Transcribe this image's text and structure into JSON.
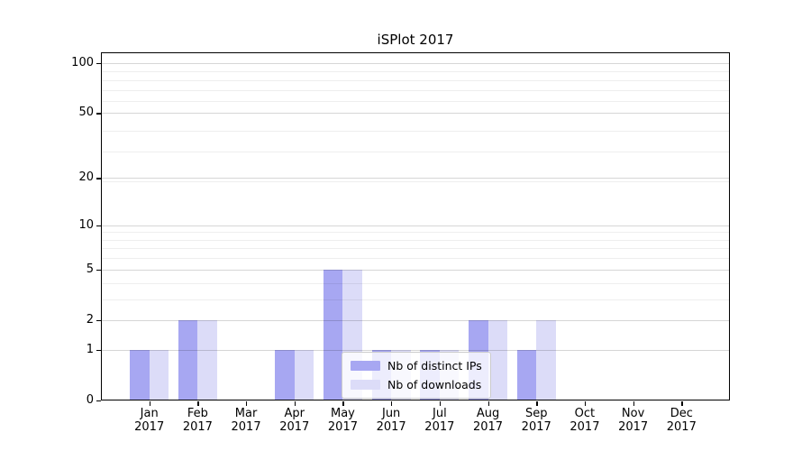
{
  "chart_data": {
    "type": "bar",
    "title": "iSPlot 2017",
    "categories": [
      "Jan",
      "Feb",
      "Mar",
      "Apr",
      "May",
      "Jun",
      "Jul",
      "Aug",
      "Sep",
      "Oct",
      "Nov",
      "Dec"
    ],
    "year_label": "2017",
    "series": [
      {
        "name": "Nb of distinct IPs",
        "color": "#a7a7f2",
        "values": [
          1,
          2,
          0,
          1,
          5,
          1,
          1,
          2,
          1,
          0,
          0,
          0
        ]
      },
      {
        "name": "Nb of downloads",
        "color": "#dcdcf8",
        "values": [
          1,
          2,
          0,
          1,
          5,
          1,
          1,
          2,
          2,
          0,
          0,
          0
        ]
      }
    ],
    "y_axis": {
      "scale": "log1p",
      "ticks": [
        0,
        1,
        2,
        5,
        10,
        20,
        50,
        100
      ],
      "minor_gridlines": [
        3,
        4,
        6,
        7,
        8,
        9,
        19,
        29,
        39,
        59,
        69,
        79,
        89
      ],
      "max": 116
    },
    "grid": true,
    "legend_position": "inside-lower-center",
    "colors": {
      "major_grid": "rgba(0,0,0,0.16)",
      "minor_grid": "rgba(0,0,0,0.065)",
      "spine": "#000000",
      "text": "#000000"
    }
  }
}
